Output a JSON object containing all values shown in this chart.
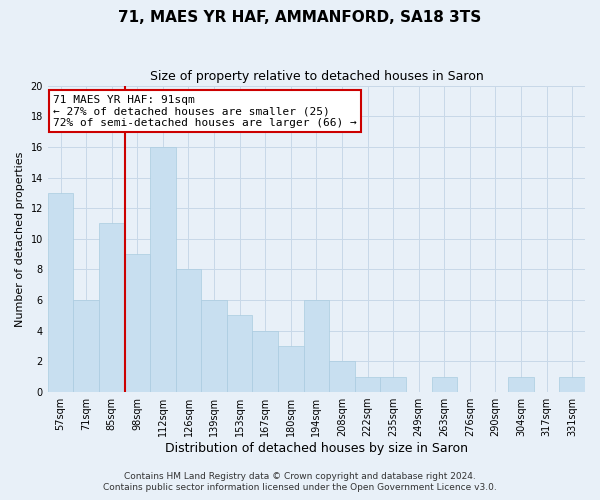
{
  "title": "71, MAES YR HAF, AMMANFORD, SA18 3TS",
  "subtitle": "Size of property relative to detached houses in Saron",
  "xlabel": "Distribution of detached houses by size in Saron",
  "ylabel": "Number of detached properties",
  "bar_labels": [
    "57sqm",
    "71sqm",
    "85sqm",
    "98sqm",
    "112sqm",
    "126sqm",
    "139sqm",
    "153sqm",
    "167sqm",
    "180sqm",
    "194sqm",
    "208sqm",
    "222sqm",
    "235sqm",
    "249sqm",
    "263sqm",
    "276sqm",
    "290sqm",
    "304sqm",
    "317sqm",
    "331sqm"
  ],
  "bar_values": [
    13,
    6,
    11,
    9,
    16,
    8,
    6,
    5,
    4,
    3,
    6,
    2,
    1,
    1,
    0,
    1,
    0,
    0,
    1,
    0,
    1
  ],
  "bar_color": "#c8dff0",
  "bar_edgecolor": "#aacce0",
  "vline_color": "#cc0000",
  "vline_pos": 2.5,
  "annotation_text": "71 MAES YR HAF: 91sqm\n← 27% of detached houses are smaller (25)\n72% of semi-detached houses are larger (66) →",
  "annotation_box_edgecolor": "#cc0000",
  "annotation_box_facecolor": "#ffffff",
  "ylim": [
    0,
    20
  ],
  "yticks": [
    0,
    2,
    4,
    6,
    8,
    10,
    12,
    14,
    16,
    18,
    20
  ],
  "footer_line1": "Contains HM Land Registry data © Crown copyright and database right 2024.",
  "footer_line2": "Contains public sector information licensed under the Open Government Licence v3.0.",
  "title_fontsize": 11,
  "subtitle_fontsize": 9,
  "xlabel_fontsize": 9,
  "ylabel_fontsize": 8,
  "tick_fontsize": 7,
  "annotation_fontsize": 8,
  "footer_fontsize": 6.5,
  "grid_color": "#c8d8e8",
  "background_color": "#e8f0f8"
}
